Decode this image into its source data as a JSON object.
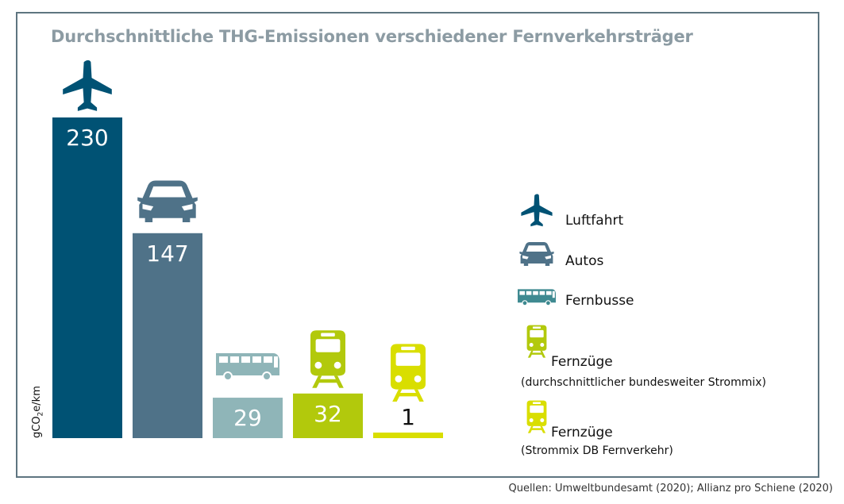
{
  "title": "Durchschnittliche THG-Emissionen verschiedener Fernverkehrsträger",
  "source": "Quellen: Umweltbundesamt (2020); Allianz pro Schiene (2020)",
  "chart_data": {
    "type": "bar",
    "title": "Durchschnittliche THG-Emissionen verschiedener Fernverkehrsträger",
    "ylabel_main": "gCO",
    "ylabel_sub": "2",
    "ylabel_tail": "e/km",
    "categories": [
      "Luftfahrt",
      "Autos",
      "Fernbusse",
      "Fernzüge (durchschnittlicher bundesweiter Strommix)",
      "Fernzüge (Strommix DB Fernverkehr)"
    ],
    "values": [
      230,
      147,
      29,
      32,
      1
    ],
    "value_labels": [
      "230",
      "147",
      "29",
      "32",
      "1"
    ],
    "colors": [
      "#005274",
      "#4f7288",
      "#8fb5b8",
      "#b2c90c",
      "#d9de00"
    ],
    "icons": [
      "airplane-icon",
      "car-icon",
      "bus-icon",
      "train-icon",
      "train-icon"
    ],
    "ylim": [
      0,
      230
    ],
    "grid": false,
    "legend_position": "right"
  },
  "legend": [
    {
      "label": "Luftfahrt",
      "sub": "",
      "icon": "airplane-icon",
      "color": "#005274"
    },
    {
      "label": "Autos",
      "sub": "",
      "icon": "car-icon",
      "color": "#4f7288"
    },
    {
      "label": "Fernbusse",
      "sub": "",
      "icon": "bus-icon",
      "color": "#3f8a91"
    },
    {
      "label": "Fernzüge",
      "sub": "(durchschnittlicher bundesweiter Strommix)",
      "icon": "train-icon",
      "color": "#b2c90c"
    },
    {
      "label": "Fernzüge",
      "sub": "(Strommix DB Fernverkehr)",
      "icon": "train-icon",
      "color": "#d9de00"
    }
  ]
}
